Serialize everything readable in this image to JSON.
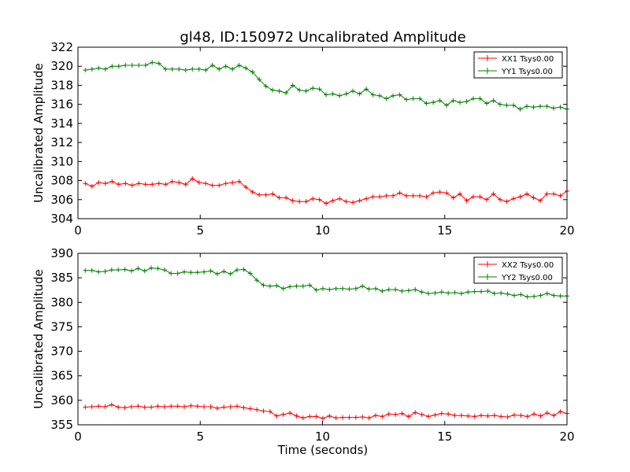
{
  "figure": {
    "title": "gl48, ID:150972 Uncalibrated Amplitude",
    "xlabel": "Time (seconds)"
  },
  "colors": {
    "red": "#ff0000",
    "green": "#008000"
  },
  "chart_data": [
    {
      "type": "line",
      "title": "gl48, ID:150972 Uncalibrated Amplitude",
      "xlabel": "",
      "ylabel": "Uncalibrated Amplitude",
      "xlim": [
        0,
        20
      ],
      "ylim": [
        304,
        322
      ],
      "xticks": [
        0,
        5,
        10,
        15,
        20
      ],
      "yticks": [
        304,
        306,
        308,
        310,
        312,
        314,
        316,
        318,
        320,
        322
      ],
      "legend_position": "top-right",
      "series": [
        {
          "name": "XX1 Tsys0.00",
          "color": "#ff0000",
          "values": [
            307.7,
            307.4,
            307.8,
            307.7,
            307.9,
            307.6,
            307.7,
            307.5,
            307.7,
            307.6,
            307.6,
            307.7,
            307.6,
            307.9,
            307.8,
            307.6,
            308.2,
            307.8,
            307.7,
            307.5,
            307.5,
            307.7,
            307.8,
            307.9,
            307.3,
            306.8,
            306.5,
            306.5,
            306.6,
            306.2,
            306.2,
            305.9,
            305.8,
            305.8,
            306.1,
            306.0,
            305.6,
            305.9,
            306.1,
            305.8,
            305.7,
            305.9,
            306.1,
            306.3,
            306.3,
            306.4,
            306.4,
            306.7,
            306.4,
            306.4,
            306.4,
            306.3,
            306.7,
            306.8,
            306.7,
            306.2,
            306.6,
            305.9,
            306.3,
            306.3,
            306.0,
            306.6,
            306.0,
            305.8,
            306.1,
            306.3,
            306.6,
            306.2,
            305.9,
            306.6,
            306.6,
            306.4,
            306.9
          ]
        },
        {
          "name": "YY1 Tsys0.00",
          "color": "#008000",
          "values": [
            319.6,
            319.7,
            319.8,
            319.7,
            320.0,
            320.0,
            320.1,
            320.1,
            320.1,
            320.1,
            320.4,
            320.3,
            319.7,
            319.7,
            319.7,
            319.6,
            319.7,
            319.7,
            319.6,
            320.1,
            319.7,
            320.0,
            319.7,
            320.1,
            319.8,
            319.4,
            318.6,
            317.9,
            317.5,
            317.4,
            317.2,
            318.0,
            317.5,
            317.4,
            317.7,
            317.6,
            317.0,
            317.1,
            316.9,
            317.1,
            317.4,
            317.1,
            317.6,
            317.0,
            316.9,
            316.6,
            316.9,
            317.0,
            316.5,
            316.6,
            316.6,
            316.1,
            316.2,
            316.4,
            315.9,
            316.4,
            316.2,
            316.3,
            316.6,
            316.6,
            316.1,
            316.4,
            316.0,
            315.9,
            315.9,
            315.5,
            315.8,
            315.7,
            315.8,
            315.8,
            315.6,
            315.7,
            315.5
          ]
        }
      ]
    },
    {
      "type": "line",
      "title": "",
      "xlabel": "Time (seconds)",
      "ylabel": "Uncalibrated Amplitude",
      "xlim": [
        0,
        20
      ],
      "ylim": [
        355,
        390
      ],
      "xticks": [
        0,
        5,
        10,
        15,
        20
      ],
      "yticks": [
        355,
        360,
        365,
        370,
        375,
        380,
        385,
        390
      ],
      "legend_position": "top-right",
      "series": [
        {
          "name": "XX2 Tsys0.00",
          "color": "#ff0000",
          "values": [
            358.6,
            358.7,
            358.8,
            358.7,
            359.1,
            358.6,
            358.5,
            358.7,
            358.8,
            358.6,
            358.6,
            358.8,
            358.7,
            358.8,
            358.8,
            358.7,
            358.9,
            358.8,
            358.7,
            358.7,
            358.4,
            358.6,
            358.7,
            358.8,
            358.5,
            358.3,
            358.1,
            357.8,
            357.7,
            356.8,
            357.1,
            357.4,
            356.8,
            356.4,
            356.7,
            356.7,
            356.3,
            356.8,
            356.4,
            356.5,
            356.5,
            356.5,
            356.6,
            356.4,
            356.9,
            356.7,
            357.2,
            357.1,
            357.3,
            356.7,
            357.5,
            357.1,
            356.7,
            357.0,
            357.3,
            357.2,
            356.9,
            356.9,
            356.8,
            356.7,
            356.9,
            356.8,
            356.9,
            356.7,
            356.6,
            357.0,
            356.9,
            356.7,
            357.2,
            356.8,
            357.4,
            356.9,
            357.7,
            357.3
          ]
        },
        {
          "name": "YY2 Tsys0.00",
          "color": "#008000",
          "values": [
            386.5,
            386.5,
            386.2,
            386.3,
            386.6,
            386.6,
            386.7,
            386.4,
            386.9,
            386.4,
            387.0,
            386.9,
            386.6,
            385.9,
            385.9,
            386.2,
            386.1,
            386.1,
            386.2,
            386.4,
            385.8,
            386.3,
            385.8,
            386.6,
            386.7,
            385.9,
            384.5,
            383.5,
            383.3,
            383.4,
            382.8,
            383.2,
            383.3,
            383.3,
            383.5,
            382.5,
            382.8,
            382.6,
            382.8,
            382.8,
            382.7,
            382.8,
            383.3,
            382.7,
            382.8,
            382.3,
            382.6,
            382.6,
            382.3,
            382.4,
            382.6,
            382.1,
            381.8,
            381.9,
            382.1,
            381.9,
            382.0,
            381.8,
            382.1,
            382.2,
            382.2,
            382.3,
            381.8,
            381.9,
            381.7,
            381.4,
            381.6,
            381.1,
            381.2,
            381.4,
            381.8,
            381.4,
            381.3,
            381.3
          ]
        }
      ]
    }
  ]
}
